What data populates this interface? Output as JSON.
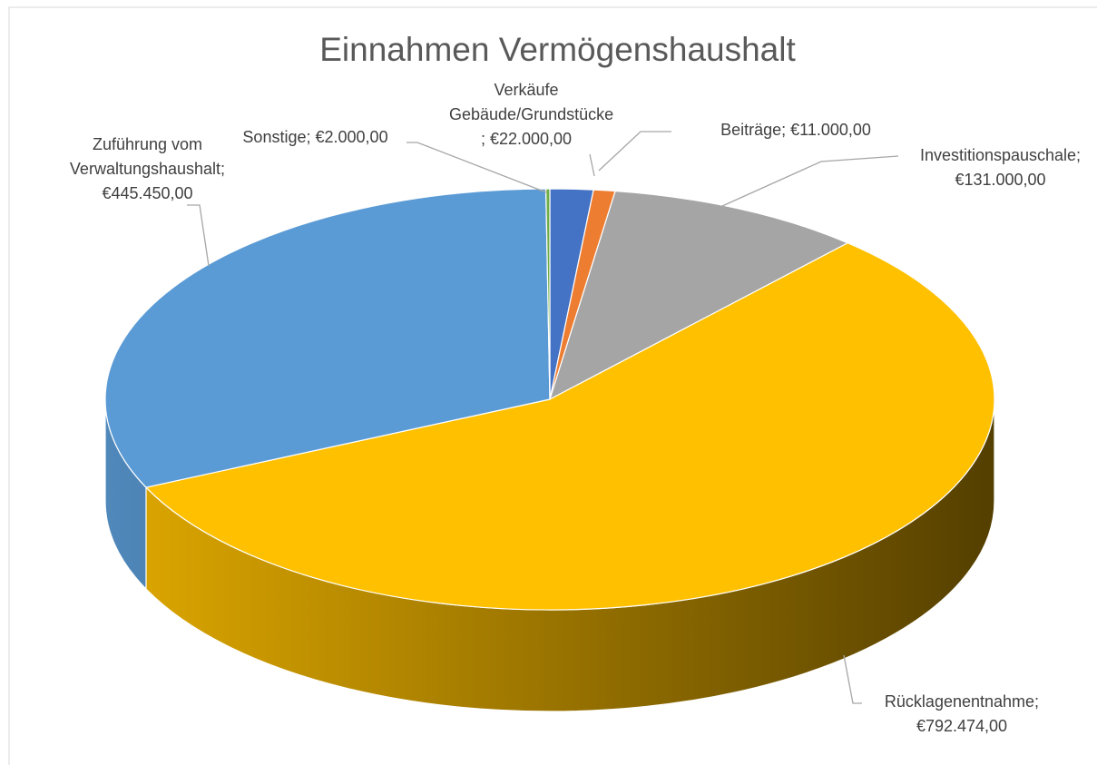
{
  "chart_data": {
    "type": "pie",
    "title": "Einnahmen Vermögenshaushalt",
    "categories": [
      "Verkäufe Gebäude/Grundstücke",
      "Beiträge",
      "Investitionspauschale",
      "Rücklagenentnahme",
      "Zuführung vom Verwaltungshaushalt",
      "Sonstige"
    ],
    "values": [
      22000,
      11000,
      131000,
      792474,
      445450,
      2000
    ],
    "value_labels": [
      "€22.000,00",
      "€11.000,00",
      "€131.000,00",
      "€792.474,00",
      "€445.450,00",
      "€2.000,00"
    ],
    "label_separator": "; ",
    "colors": [
      "#4472c4",
      "#ed7d31",
      "#a5a5a5",
      "#ffc000",
      "#5b9bd5",
      "#70ad47"
    ],
    "three_d": true
  }
}
